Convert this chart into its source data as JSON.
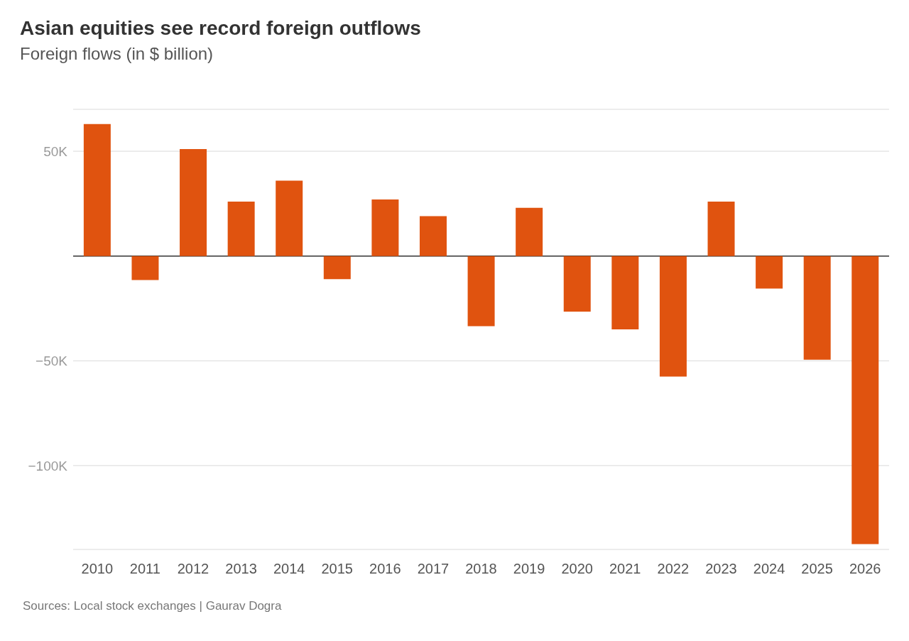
{
  "chart_data": {
    "type": "bar",
    "title": "Asian equities see record foreign outflows",
    "subtitle": "Foreign flows (in $ billion)",
    "categories": [
      "2010",
      "2011",
      "2012",
      "2013",
      "2014",
      "2015",
      "2016",
      "2017",
      "2018",
      "2019",
      "2020",
      "2021",
      "2022",
      "2023",
      "2024",
      "2025",
      "2026"
    ],
    "values": [
      63000,
      -11500,
      51000,
      26000,
      36000,
      -11000,
      27000,
      19000,
      -33500,
      23000,
      -26500,
      -35000,
      -57500,
      26000,
      -15500,
      -49500,
      -137500
    ],
    "color": "#e0530f",
    "ylim": [
      -140000,
      70000
    ],
    "yticks": [
      {
        "value": -100000,
        "label": "−100K"
      },
      {
        "value": -50000,
        "label": "−50K"
      },
      {
        "value": 0,
        "label": null
      },
      {
        "value": 50000,
        "label": "50K"
      }
    ],
    "grid": "y",
    "annotations": [
      "Sources: Local stock exchanges | Gaurav Dogra"
    ]
  }
}
